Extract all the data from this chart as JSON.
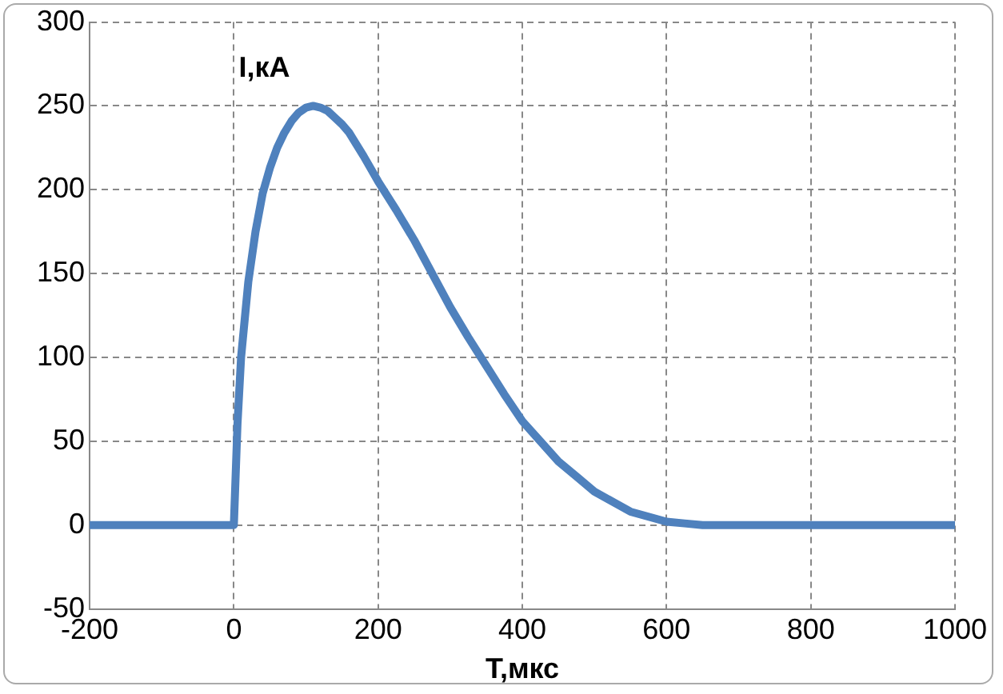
{
  "chart_data": {
    "type": "line",
    "xlabel": "T,мкс",
    "ylabel": "I,кА",
    "x": [
      -200,
      -150,
      -100,
      -50,
      -10,
      0,
      5,
      10,
      20,
      30,
      40,
      50,
      60,
      70,
      80,
      90,
      100,
      110,
      120,
      130,
      140,
      150,
      160,
      180,
      200,
      225,
      250,
      275,
      300,
      325,
      350,
      375,
      400,
      425,
      450,
      475,
      500,
      525,
      550,
      575,
      600,
      625,
      650,
      700,
      800,
      900,
      1000
    ],
    "series": [
      {
        "color": "#4f81bd",
        "values": [
          0,
          0,
          0,
          0,
          0,
          0,
          60,
          100,
          145,
          175,
          198,
          213,
          225,
          234,
          241,
          246,
          249,
          250,
          249,
          247,
          243,
          239,
          234,
          220,
          205,
          188,
          170,
          150,
          130,
          112,
          95,
          78,
          62,
          50,
          38,
          29,
          20,
          14,
          8,
          5,
          2,
          1,
          0,
          0,
          0,
          0,
          0
        ]
      }
    ],
    "xlim": [
      -200,
      1000
    ],
    "xticks": [
      -200,
      0,
      200,
      400,
      600,
      800,
      1000
    ],
    "ylim": [
      -50,
      300
    ],
    "yticks": [
      -50,
      0,
      50,
      100,
      150,
      200,
      250,
      300
    ],
    "grid": true,
    "legend": false,
    "marker": "none",
    "line_style": "solid"
  }
}
